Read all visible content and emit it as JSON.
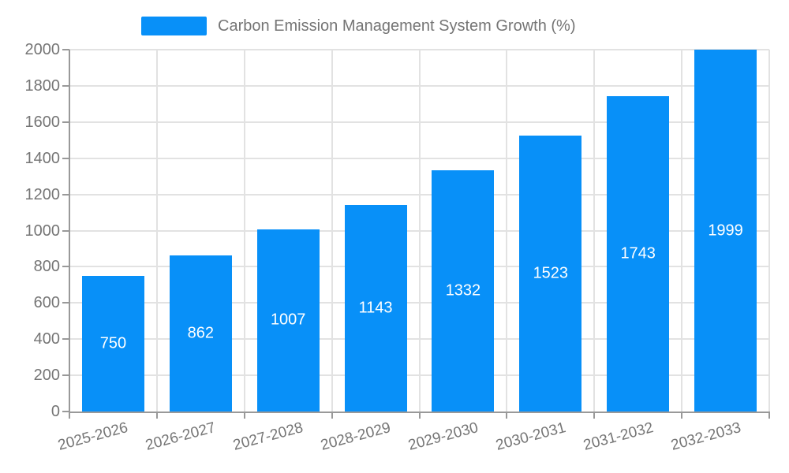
{
  "chart_data": {
    "type": "bar",
    "title": "Carbon Emission Management System Growth (%)",
    "legend_position": "top",
    "categories": [
      "2025-2026",
      "2026-2027",
      "2027-2028",
      "2028-2029",
      "2029-2030",
      "2030-2031",
      "2031-2032",
      "2032-2033"
    ],
    "series": [
      {
        "name": "Carbon Emission Management System Growth (%)",
        "values": [
          750,
          862,
          1007,
          1143,
          1332,
          1523,
          1743,
          1999
        ]
      }
    ],
    "xlabel": "",
    "ylabel": "",
    "ylim": [
      0,
      2000
    ],
    "yticks": [
      0,
      200,
      400,
      600,
      800,
      1000,
      1200,
      1400,
      1600,
      1800,
      2000
    ],
    "grid": true,
    "colors": {
      "bar": "#0890f8",
      "value_label": "#ffffff",
      "axis_text": "#757575",
      "axis_line": "#999999",
      "gridline": "#e2e2e2",
      "background": "#ffffff"
    }
  }
}
